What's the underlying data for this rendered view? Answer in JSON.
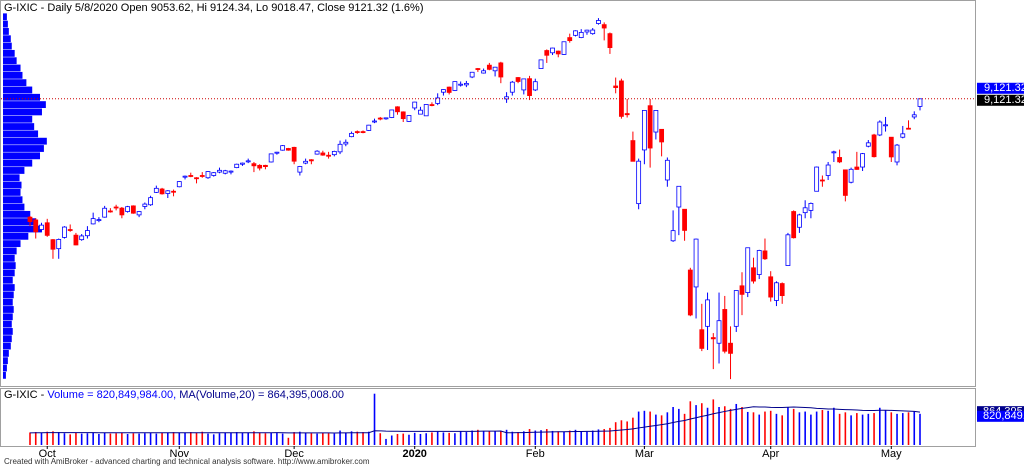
{
  "chart_data": {
    "type": "candlestick",
    "title": "G-IXIC - Daily 5/8/2020 Open 9053.62, Hi 9124.34, Lo 9018.47, Close 9121.32 (1.6%)",
    "footer": "Created with AmiBroker - advanced charting and technical analysis software. http://www.amibroker.com",
    "up_color": "#0000ff",
    "down_color": "#ff0000",
    "ylim": [
      6570,
      9990
    ],
    "categories": [
      null,
      null,
      null,
      "Oct",
      null,
      null,
      null,
      null,
      null,
      null,
      null,
      null,
      null,
      null,
      null,
      null,
      null,
      null,
      null,
      null,
      null,
      null,
      null,
      null,
      null,
      null,
      "Nov",
      null,
      null,
      null,
      null,
      null,
      null,
      null,
      null,
      null,
      null,
      null,
      null,
      null,
      null,
      null,
      null,
      null,
      null,
      null,
      "Dec",
      null,
      null,
      null,
      null,
      null,
      null,
      null,
      null,
      null,
      null,
      null,
      null,
      null,
      null,
      null,
      null,
      null,
      null,
      null,
      null,
      "2020",
      null,
      null,
      null,
      null,
      null,
      null,
      null,
      null,
      null,
      null,
      null,
      null,
      null,
      null,
      null,
      null,
      null,
      null,
      null,
      null,
      "Feb",
      null,
      null,
      null,
      null,
      null,
      null,
      null,
      null,
      null,
      null,
      null,
      null,
      null,
      null,
      null,
      null,
      null,
      null,
      "Mar",
      null,
      null,
      null,
      null,
      null,
      null,
      null,
      null,
      null,
      null,
      null,
      null,
      null,
      null,
      null,
      null,
      null,
      null,
      null,
      null,
      null,
      "Apr",
      null,
      null,
      null,
      null,
      null,
      null,
      null,
      null,
      null,
      null,
      null,
      null,
      null,
      null,
      null,
      null,
      null,
      null,
      null,
      null,
      "May",
      null,
      null,
      null,
      null,
      null
    ],
    "open": [
      8070,
      8045,
      7960,
      8020,
      7870,
      7790,
      7890,
      7960,
      7910,
      7870,
      7905,
      8010,
      8040,
      8070,
      8125,
      8160,
      8150,
      8120,
      8170,
      8090,
      8165,
      8180,
      8290,
      8320,
      8280,
      8300,
      8340,
      8430,
      8440,
      8420,
      8440,
      8420,
      8440,
      8470,
      8460,
      8475,
      8510,
      8540,
      8570,
      8545,
      8530,
      8530,
      8560,
      8640,
      8665,
      8680,
      8690,
      8470,
      8550,
      8580,
      8630,
      8640,
      8620,
      8625,
      8650,
      8720,
      8785,
      8830,
      8830,
      8840,
      8920,
      8950,
      8945,
      8955,
      9050,
      9005,
      8920,
      9040,
      8985,
      8970,
      9070,
      9080,
      9180,
      9225,
      9195,
      9250,
      9245,
      9315,
      9390,
      9350,
      9420,
      9370,
      9440,
      9120,
      9180,
      9310,
      9200,
      9300,
      9200,
      9390,
      9550,
      9530,
      9545,
      9515,
      9665,
      9685,
      9665,
      9715,
      9700,
      9790,
      9780,
      9700,
      9235,
      9280,
      8990,
      8750,
      8190,
      8667,
      9060,
      8826,
      8850,
      8400,
      7860,
      8160,
      8140,
      7600,
      7450,
      7070,
      7100,
      7000,
      6950,
      7250,
      6950,
      7100,
      7460,
      7400,
      7620,
      7560,
      7770,
      7540,
      7330,
      7480,
      7640,
      8120,
      7980,
      8110,
      8130,
      8300,
      8400,
      8440,
      8650,
      8600,
      8490,
      8380,
      8515,
      8515,
      8700,
      8800,
      8800,
      8890,
      8780,
      8560,
      8780,
      8860,
      8960,
      9053.62
    ],
    "high": [
      8080,
      8060,
      8020,
      8055,
      7875,
      7880,
      7990,
      8005,
      7930,
      7920,
      7990,
      8110,
      8070,
      8170,
      8150,
      8180,
      8160,
      8170,
      8175,
      8125,
      8200,
      8260,
      8350,
      8330,
      8310,
      8315,
      8390,
      8440,
      8465,
      8425,
      8470,
      8480,
      8470,
      8510,
      8490,
      8485,
      8545,
      8555,
      8590,
      8560,
      8540,
      8535,
      8635,
      8650,
      8710,
      8685,
      8695,
      8525,
      8590,
      8585,
      8665,
      8660,
      8650,
      8660,
      8750,
      8760,
      8830,
      8840,
      8840,
      8890,
      8945,
      8960,
      8955,
      9025,
      9055,
      9010,
      8975,
      9095,
      9050,
      9075,
      9090,
      9170,
      9205,
      9230,
      9275,
      9275,
      9280,
      9360,
      9395,
      9390,
      9440,
      9405,
      9450,
      9180,
      9280,
      9315,
      9300,
      9325,
      9300,
      9470,
      9560,
      9575,
      9550,
      9630,
      9700,
      9730,
      9740,
      9735,
      9750,
      9838,
      9800,
      9710,
      9310,
      9300,
      9120,
      8830,
      8590,
      9020,
      9120,
      9020,
      8850,
      8600,
      8130,
      8346,
      8140,
      7620,
      7880,
      7300,
      7400,
      7040,
      7400,
      7370,
      7100,
      7420,
      7580,
      7800,
      7710,
      7780,
      7880,
      7590,
      7500,
      7490,
      7930,
      8130,
      8100,
      8220,
      8200,
      8520,
      8440,
      8560,
      8660,
      8670,
      8490,
      8510,
      8650,
      8640,
      8755,
      8810,
      8930,
      8960,
      8780,
      8720,
      8880,
      8930,
      9010,
      9124.34
    ],
    "low": [
      7990,
      7880,
      7950,
      7895,
      7700,
      7700,
      7880,
      7940,
      7820,
      7860,
      7880,
      8005,
      8025,
      8065,
      8110,
      8130,
      8060,
      8110,
      8100,
      8070,
      8140,
      8170,
      8285,
      8270,
      8240,
      8255,
      8335,
      8405,
      8425,
      8370,
      8420,
      8410,
      8430,
      8460,
      8450,
      8450,
      8505,
      8525,
      8550,
      8470,
      8485,
      8495,
      8555,
      8625,
      8660,
      8660,
      8540,
      8440,
      8540,
      8540,
      8625,
      8615,
      8590,
      8610,
      8630,
      8700,
      8780,
      8810,
      8815,
      8835,
      8905,
      8930,
      8935,
      8950,
      8980,
      8915,
      8915,
      9020,
      8985,
      8970,
      9055,
      9065,
      9150,
      9160,
      9190,
      9230,
      9225,
      9305,
      9360,
      9345,
      9375,
      9320,
      9260,
      9085,
      9150,
      9260,
      9160,
      9110,
      9190,
      9390,
      9440,
      9510,
      9490,
      9510,
      9620,
      9675,
      9660,
      9690,
      9690,
      9780,
      9640,
      9520,
      9170,
      8945,
      8955,
      8565,
      8140,
      8540,
      8510,
      8760,
      8610,
      8340,
      7850,
      7910,
      7860,
      7190,
      7170,
      6880,
      6890,
      6720,
      6770,
      6860,
      6631,
      7050,
      7200,
      7360,
      7480,
      7520,
      7690,
      7320,
      7280,
      7300,
      7640,
      7880,
      7930,
      8060,
      8060,
      8300,
      8340,
      8400,
      8560,
      8550,
      8210,
      8370,
      8490,
      8480,
      8690,
      8600,
      8790,
      8830,
      8560,
      8530,
      8770,
      8850,
      8940,
      9018.47
    ],
    "close": [
      8030,
      7940,
      7999,
      7908,
      7785,
      7872,
      7982,
      7956,
      7823,
      7903,
      7951,
      8057,
      8048,
      8149,
      8124,
      8157,
      8090,
      8163,
      8105,
      8120,
      8186,
      8243,
      8326,
      8277,
      8304,
      8292,
      8386,
      8434,
      8435,
      8411,
      8434,
      8475,
      8465,
      8486,
      8482,
      8479,
      8540,
      8550,
      8570,
      8526,
      8506,
      8519,
      8632,
      8647,
      8705,
      8665,
      8567,
      8520,
      8566,
      8570,
      8656,
      8621,
      8616,
      8654,
      8717,
      8735,
      8814,
      8823,
      8827,
      8887,
      8924,
      8945,
      8952,
      9022,
      9006,
      8945,
      8973,
      9092,
      9020,
      9071,
      9068,
      9129,
      9203,
      9178,
      9274,
      9251,
      9258,
      9357,
      9388,
      9370,
      9383,
      9402,
      9315,
      9139,
      9269,
      9275,
      9298,
      9150,
      9273,
      9467,
      9508,
      9572,
      9520,
      9628,
      9638,
      9725,
      9711,
      9731,
      9732,
      9817,
      9750,
      9576,
      9221,
      8965,
      8980,
      8566,
      8567,
      9018,
      8684,
      9018,
      8738,
      8575,
      7950,
      8344,
      7952,
      7201,
      7875,
      6904,
      7335,
      6989,
      7150,
      6879,
      6860,
      7418,
      7384,
      7798,
      7502,
      7774,
      7700,
      7360,
      7487,
      7373,
      7913,
      7887,
      8090,
      8153,
      8192,
      8515,
      8393,
      8533,
      8650,
      8561,
      8263,
      8495,
      8494,
      8634,
      8730,
      8607,
      8915,
      8890,
      8605,
      8710,
      8810,
      8855,
      8979,
      9121.32
    ],
    "last_price_labels": [
      "9,121.32",
      "9,121.32"
    ],
    "price_line_color": "#cc0000",
    "volume_title": [
      "G-IXIC - ",
      "Volume = 820,849,984.00,",
      " MA(Volume,20) = 864,395,008.00"
    ],
    "vylim": [
      0,
      1500000000
    ],
    "volume": [
      330000000,
      340000000,
      320000000,
      350000000,
      360000000,
      340000000,
      310000000,
      280000000,
      330000000,
      300000000,
      310000000,
      330000000,
      290000000,
      320000000,
      300000000,
      310000000,
      330000000,
      290000000,
      310000000,
      300000000,
      310000000,
      320000000,
      300000000,
      320000000,
      330000000,
      340000000,
      330000000,
      320000000,
      340000000,
      330000000,
      350000000,
      300000000,
      280000000,
      310000000,
      320000000,
      330000000,
      340000000,
      320000000,
      330000000,
      360000000,
      330000000,
      310000000,
      320000000,
      330000000,
      300000000,
      190000000,
      340000000,
      350000000,
      320000000,
      310000000,
      300000000,
      320000000,
      310000000,
      300000000,
      380000000,
      330000000,
      360000000,
      350000000,
      340000000,
      350000000,
      1350000000,
      310000000,
      160000000,
      250000000,
      290000000,
      300000000,
      270000000,
      320000000,
      290000000,
      310000000,
      330000000,
      350000000,
      330000000,
      320000000,
      310000000,
      360000000,
      340000000,
      380000000,
      400000000,
      370000000,
      360000000,
      360000000,
      370000000,
      400000000,
      350000000,
      340000000,
      360000000,
      420000000,
      380000000,
      390000000,
      420000000,
      370000000,
      360000000,
      350000000,
      380000000,
      400000000,
      360000000,
      350000000,
      380000000,
      410000000,
      420000000,
      450000000,
      600000000,
      650000000,
      620000000,
      720000000,
      880000000,
      900000000,
      880000000,
      800000000,
      780000000,
      860000000,
      1000000000,
      950000000,
      820000000,
      1150000000,
      1050000000,
      1100000000,
      980000000,
      1200000000,
      1000000000,
      1020000000,
      950000000,
      1080000000,
      1000000000,
      870000000,
      860000000,
      800000000,
      880000000,
      900000000,
      820000000,
      780000000,
      1000000000,
      950000000,
      860000000,
      880000000,
      800000000,
      880000000,
      920000000,
      900000000,
      980000000,
      820000000,
      860000000,
      780000000,
      840000000,
      800000000,
      820000000,
      840000000,
      980000000,
      920000000,
      860000000,
      820000000,
      840000000,
      860000000,
      880000000,
      820849984
    ],
    "volume_ma": [
      320000000,
      322000000,
      323000000,
      325000000,
      326000000,
      327000000,
      327000000,
      326000000,
      326000000,
      325000000,
      325000000,
      325000000,
      324000000,
      324000000,
      323000000,
      323000000,
      323000000,
      322000000,
      322000000,
      321000000,
      321000000,
      321000000,
      321000000,
      321000000,
      322000000,
      322000000,
      322000000,
      322000000,
      323000000,
      323000000,
      324000000,
      323000000,
      322000000,
      322000000,
      322000000,
      322000000,
      323000000,
      323000000,
      323000000,
      324000000,
      324000000,
      324000000,
      324000000,
      325000000,
      324000000,
      319000000,
      319000000,
      320000000,
      320000000,
      319000000,
      318000000,
      318000000,
      318000000,
      317000000,
      319000000,
      320000000,
      321000000,
      322000000,
      322000000,
      323000000,
      374000000,
      373000000,
      365000000,
      362000000,
      361000000,
      360000000,
      358000000,
      358000000,
      357000000,
      357000000,
      358000000,
      359000000,
      360000000,
      360000000,
      359000000,
      359000000,
      359000000,
      360000000,
      363000000,
      365000000,
      366000000,
      366000000,
      368000000,
      323000000,
      324000000,
      325000000,
      327000000,
      332000000,
      335000000,
      338000000,
      343000000,
      346000000,
      348000000,
      349000000,
      352000000,
      356000000,
      356000000,
      357000000,
      358000000,
      361000000,
      364000000,
      368000000,
      380000000,
      395000000,
      408000000,
      425000000,
      449000000,
      470000000,
      494000000,
      514000000,
      535000000,
      560000000,
      593000000,
      622000000,
      644000000,
      683000000,
      718000000,
      754000000,
      784000000,
      822000000,
      853000000,
      883000000,
      910000000,
      937000000,
      963000000,
      985000000,
      1006000000,
      1001000000,
      1000000000,
      990000000,
      987000000,
      986000000,
      995000000,
      999000000,
      992000000,
      988000000,
      979000000,
      965000000,
      958000000,
      948000000,
      947000000,
      939000000,
      932000000,
      928000000,
      921000000,
      912000000,
      909000000,
      907000000,
      913000000,
      915000000,
      911000000,
      906000000,
      899000000,
      893000000,
      886000000,
      864395008
    ],
    "volume_ma_color": "#00008b",
    "volume_labels": [
      "864,395,0",
      "820,849,9"
    ],
    "volume_profile": {
      "color": "#0000ff",
      "xlim": [
        0,
        1000
      ],
      "bins": [
        6630,
        6695,
        6760,
        6825,
        6890,
        6955,
        7020,
        7085,
        7150,
        7215,
        7280,
        7345,
        7410,
        7475,
        7540,
        7605,
        7670,
        7735,
        7800,
        7865,
        7930,
        7995,
        8060,
        8125,
        8190,
        8255,
        8320,
        8385,
        8450,
        8515,
        8580,
        8645,
        8710,
        8775,
        8840,
        8905,
        8970,
        9035,
        9100,
        9165,
        9230,
        9295,
        9360,
        9425,
        9490,
        9555,
        9620,
        9685,
        9750,
        9815,
        9880
      ],
      "values": [
        3,
        4,
        5,
        6,
        8,
        9,
        10,
        9,
        10,
        11,
        10,
        11,
        12,
        10,
        12,
        13,
        12,
        14,
        18,
        26,
        40,
        34,
        28,
        22,
        20,
        18,
        19,
        17,
        22,
        30,
        38,
        42,
        45,
        36,
        32,
        30,
        40,
        44,
        38,
        30,
        24,
        20,
        18,
        14,
        12,
        9,
        8,
        6,
        5,
        4
      ]
    }
  }
}
